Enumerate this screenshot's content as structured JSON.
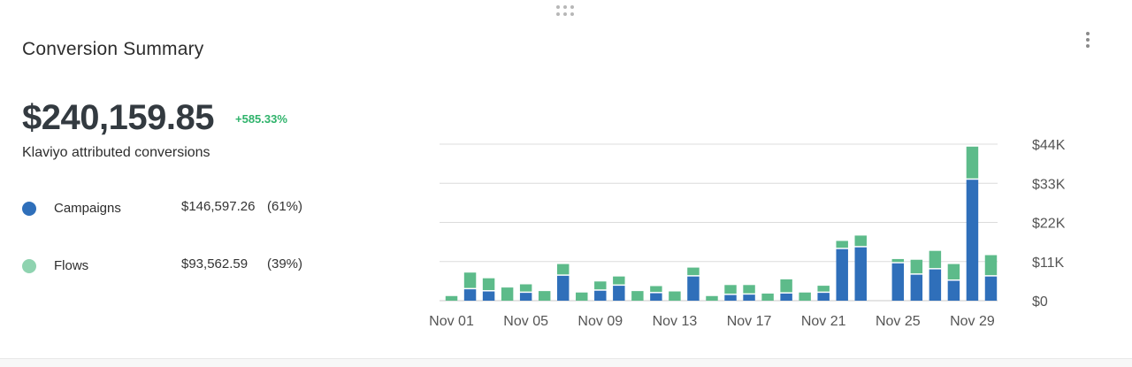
{
  "card": {
    "title": "Conversion Summary",
    "total": "$240,159.85",
    "change": "+585.33%",
    "subtitle": "Klaviyo attributed conversions",
    "icons": [
      "drag-handle-icon",
      "more-vertical-icon"
    ]
  },
  "legend": [
    {
      "label": "Campaigns",
      "value": "$146,597.26",
      "pct": "(61%)",
      "color": "#2f6fba"
    },
    {
      "label": "Flows",
      "value": "$93,562.59",
      "pct": "(39%)",
      "color": "#8fd3b0"
    }
  ],
  "colors": {
    "campaigns": "#2f6fba",
    "flows": "#5dbb8a",
    "positive": "#2fb36b"
  },
  "chart_data": {
    "type": "bar",
    "stacked": true,
    "categories": [
      "Nov 01",
      "Nov 02",
      "Nov 03",
      "Nov 04",
      "Nov 05",
      "Nov 06",
      "Nov 07",
      "Nov 08",
      "Nov 09",
      "Nov 10",
      "Nov 11",
      "Nov 12",
      "Nov 13",
      "Nov 14",
      "Nov 15",
      "Nov 16",
      "Nov 17",
      "Nov 18",
      "Nov 19",
      "Nov 20",
      "Nov 21",
      "Nov 22",
      "Nov 23",
      "Nov 24",
      "Nov 25",
      "Nov 26",
      "Nov 27",
      "Nov 28",
      "Nov 29",
      "Nov 30"
    ],
    "x_tick_labels": [
      "Nov 01",
      "Nov 05",
      "Nov 09",
      "Nov 13",
      "Nov 17",
      "Nov 21",
      "Nov 25",
      "Nov 29"
    ],
    "series": [
      {
        "name": "Campaigns",
        "values": [
          0,
          3200,
          2600,
          0,
          2200,
          0,
          7000,
          0,
          2800,
          4200,
          0,
          2100,
          0,
          6800,
          0,
          1600,
          1700,
          0,
          2000,
          0,
          2200,
          14500,
          15000,
          0,
          10500,
          7300,
          8800,
          5600,
          34000,
          6800
        ]
      },
      {
        "name": "Flows",
        "values": [
          1300,
          4700,
          3700,
          3700,
          2400,
          2700,
          3300,
          2300,
          2600,
          2600,
          2700,
          2000,
          2600,
          2500,
          1300,
          2800,
          2700,
          2000,
          4000,
          2300,
          2000,
          2300,
          3300,
          0,
          1200,
          4200,
          5200,
          4700,
          9300,
          6000
        ]
      }
    ],
    "y_tick_labels": [
      "$0",
      "$11K",
      "$22K",
      "$33K",
      "$44K"
    ],
    "y_ticks": [
      0,
      11000,
      22000,
      33000,
      44000
    ],
    "ylim": [
      0,
      44000
    ],
    "grid": true,
    "y_axis_position": "right",
    "title": "",
    "xlabel": "",
    "ylabel": ""
  }
}
